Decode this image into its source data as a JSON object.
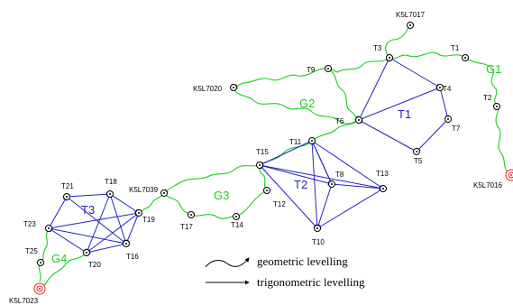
{
  "colors": {
    "trigonometric": "#2323c8",
    "geometric": "#19d019",
    "benchmark": "#e02020",
    "station": "#000000",
    "group_label_blue": "#2323c8",
    "group_label_green": "#19d019"
  },
  "points": {
    "K5L7017": "K5L7017",
    "T1": "T1",
    "T2": "T2",
    "T3": "T3",
    "T4": "T4",
    "T5": "T5",
    "T6": "T6",
    "T7": "T7",
    "T8": "T8",
    "T9": "T9",
    "T10": "T10",
    "T11": "T11",
    "T12": "T12",
    "T13": "T13",
    "T14": "T14",
    "T15": "T15",
    "T16": "T16",
    "T17": "T17",
    "T18": "T18",
    "T19": "T19",
    "T20": "T20",
    "T21": "T21",
    "T23": "T23",
    "T25": "T25",
    "K5L7020": "K5L7020",
    "K5L7039": "K5L7039",
    "K5L7016": "K5L7016",
    "K5L7023": "K5L7023"
  },
  "groups": {
    "G1": "G1",
    "G2": "G2",
    "G3": "G3",
    "G4": "G4",
    "T1": "T1",
    "T2": "T2",
    "T3": "T3"
  },
  "legend": {
    "geometric": "geometric levelling",
    "trigonometric": "trigonometric levelling"
  }
}
